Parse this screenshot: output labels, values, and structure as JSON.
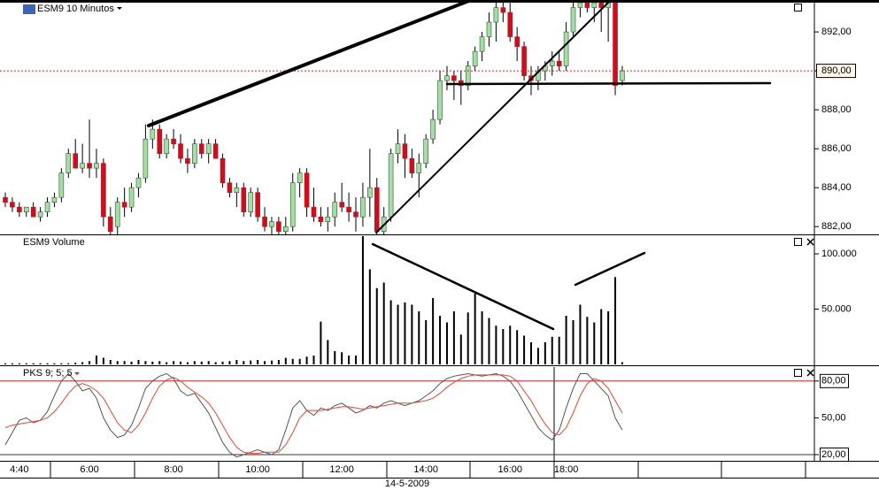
{
  "chart_data": [
    {
      "type": "candlestick",
      "title": "ESM9 10 Minutos",
      "xlabel": "14-5-2009",
      "categories": [
        null,
        null,
        "4:40",
        null,
        null,
        null,
        null,
        null,
        null,
        null,
        null,
        null,
        "6:00",
        null,
        null,
        null,
        null,
        null,
        null,
        null,
        null,
        null,
        null,
        null,
        "8:00",
        null,
        null,
        null,
        null,
        null,
        null,
        null,
        null,
        null,
        null,
        null,
        "10:00",
        null,
        null,
        null,
        null,
        null,
        null,
        null,
        null,
        null,
        null,
        null,
        "12:00",
        null,
        null,
        null,
        null,
        null,
        null,
        null,
        null,
        null,
        null,
        null,
        "14:00",
        null,
        null,
        null,
        null,
        null,
        null,
        null,
        null,
        null,
        null,
        null,
        "16:00",
        null,
        null,
        null,
        null,
        null,
        null,
        null,
        "18:00",
        null,
        null,
        null,
        null,
        null,
        null,
        null,
        null
      ],
      "open": [
        883.5,
        883.25,
        883,
        882.75,
        883,
        882.5,
        882.75,
        883.25,
        883.5,
        884.75,
        885.75,
        885,
        885.25,
        885,
        885.25,
        882.5,
        882,
        883.25,
        883,
        884,
        884.5,
        886.5,
        887,
        885.75,
        886.5,
        886.25,
        885.5,
        885.25,
        886.25,
        885.75,
        886.25,
        885.5,
        884.25,
        883.75,
        884,
        882.75,
        883.75,
        882.5,
        882,
        882.25,
        881.75,
        882,
        884.25,
        884.75,
        883,
        882.5,
        882.25,
        882.5,
        883.25,
        883,
        882.75,
        882.5,
        883.5,
        884,
        881.75,
        882.5,
        885.75,
        886.25,
        885.5,
        884.75,
        885.25,
        886.5,
        887.5,
        889.5,
        889.75,
        889.5,
        889.25,
        890.25,
        891,
        891.75,
        892.5,
        893.25,
        893,
        891.75,
        891.25,
        889.75,
        889.5,
        890,
        890.25,
        890.5,
        890.25,
        892,
        893.25,
        893.5,
        893.25,
        893.5,
        893.25,
        893.5,
        889.5
      ],
      "high": [
        883.75,
        883.5,
        883.25,
        883,
        883.25,
        883,
        883.5,
        883.75,
        885,
        886,
        886.5,
        886.25,
        887.5,
        886,
        885.5,
        883,
        883.5,
        884,
        884.25,
        884.75,
        887.25,
        887.5,
        887.25,
        886.75,
        887,
        886.75,
        886,
        886.5,
        886.5,
        886.5,
        886.5,
        885.75,
        884.5,
        884.25,
        884.25,
        884,
        884,
        883,
        882.5,
        882.5,
        882.5,
        884.75,
        885,
        885,
        884,
        883,
        883,
        883.75,
        884.25,
        883.75,
        883.5,
        884.25,
        886,
        884.5,
        883,
        886,
        887,
        886.75,
        886,
        885.75,
        886.75,
        888,
        890,
        890.25,
        890,
        890,
        890.5,
        891.25,
        892,
        893,
        894,
        894,
        893.5,
        892.25,
        891.5,
        890.25,
        890.25,
        890.5,
        891,
        891,
        892.5,
        893.5,
        894,
        894,
        894,
        894,
        894,
        894,
        890.25
      ],
      "low": [
        883,
        882.75,
        882.5,
        882.5,
        882.5,
        882.25,
        882.5,
        883,
        883.25,
        884.5,
        885,
        884.75,
        884.5,
        884.5,
        882,
        881.6,
        881.6,
        882.5,
        882.75,
        883.5,
        884.25,
        886,
        885.5,
        885.5,
        886,
        885.25,
        884.75,
        885,
        885.5,
        885.25,
        885.5,
        884,
        883.5,
        883,
        882.5,
        882.5,
        882.25,
        881.75,
        881.6,
        881.6,
        881.6,
        881.75,
        883.5,
        882.5,
        882.25,
        882,
        881.75,
        882,
        882.75,
        882.25,
        881.75,
        882,
        882.5,
        881.6,
        881.6,
        882.25,
        885.25,
        884.5,
        884.5,
        883.5,
        885,
        886.25,
        887.25,
        889,
        888.5,
        888.25,
        889,
        890,
        890.5,
        891.25,
        891.5,
        892.5,
        891.5,
        890.5,
        889.5,
        888.75,
        889,
        889.5,
        889.75,
        890,
        890,
        891.75,
        892.75,
        893,
        892.5,
        892,
        891.5,
        888.75,
        889.25
      ],
      "close": [
        883.25,
        883,
        882.75,
        883,
        882.5,
        882.75,
        883.25,
        883.5,
        884.75,
        885.75,
        885,
        885.25,
        885,
        885.25,
        882.5,
        881.75,
        883.25,
        883,
        884,
        884.5,
        886.5,
        887,
        885.75,
        886.5,
        886.25,
        885.5,
        885.25,
        886.25,
        885.75,
        886.25,
        885.5,
        884.25,
        883.75,
        884,
        882.75,
        883.75,
        882.5,
        882,
        882.25,
        881.75,
        882,
        884.25,
        884.75,
        883,
        882.5,
        882.25,
        882.5,
        883.25,
        883,
        882.75,
        882.5,
        883.5,
        884,
        881.75,
        882.5,
        885.75,
        886.25,
        885.5,
        884.75,
        885.25,
        886.5,
        887.5,
        889.5,
        889.75,
        889.5,
        889.25,
        890.25,
        891,
        891.75,
        892.5,
        893.25,
        893,
        891.75,
        891.25,
        889.75,
        889.5,
        890,
        890.25,
        890.5,
        890.25,
        892,
        893.25,
        893.5,
        893.25,
        893.5,
        893.25,
        893.5,
        889.25,
        890
      ],
      "up_color": "#a6dca6",
      "down_color": "#c8101e",
      "ylim": [
        881.6,
        893.64
      ],
      "yticks": [
        {
          "value": 882,
          "label": "882,00"
        },
        {
          "value": 884,
          "label": "884,00"
        },
        {
          "value": 886,
          "label": "886,00"
        },
        {
          "value": 888,
          "label": "888,00"
        },
        {
          "value": 890,
          "label": "890,00"
        },
        {
          "value": 892,
          "label": "892,00"
        }
      ],
      "last_price": {
        "value": 890,
        "label": "890,00",
        "color": "#dd2222"
      }
    },
    {
      "type": "bar",
      "title": "ESM9 Volume",
      "color": "#000000",
      "values": [
        1000,
        1000,
        1000,
        1000,
        1000,
        1000,
        1000,
        1000,
        1000,
        1000,
        1500,
        2000,
        3000,
        8000,
        6000,
        4000,
        3000,
        3000,
        2500,
        4000,
        3000,
        2500,
        3000,
        2000,
        3000,
        2500,
        2000,
        3000,
        2500,
        3000,
        2000,
        2500,
        3000,
        4000,
        3000,
        3500,
        4000,
        3000,
        3500,
        4000,
        6000,
        5000,
        5000,
        7000,
        8000,
        38700,
        22000,
        12000,
        11000,
        8000,
        8000,
        116000,
        86000,
        69000,
        74000,
        58000,
        54000,
        56000,
        54000,
        48000,
        40000,
        60000,
        44000,
        38000,
        48000,
        27000,
        47000,
        64000,
        48000,
        42000,
        35000,
        32000,
        35000,
        31000,
        26000,
        20000,
        15000,
        20000,
        25000,
        25000,
        44000,
        40000,
        54000,
        43000,
        38000,
        50000,
        48000,
        79000,
        2000
      ],
      "ylim": [
        0,
        116000
      ],
      "yticks": [
        {
          "value": 50000,
          "label": "50.000"
        },
        {
          "value": 100000,
          "label": "100.000"
        }
      ]
    },
    {
      "type": "line",
      "title": "PKS 9; 5; 5",
      "title_color": "#cc2222",
      "series": [
        {
          "color": "#555555",
          "values": [
            28,
            38,
            48,
            50,
            46,
            48,
            55,
            68,
            80,
            86,
            80,
            72,
            74,
            66,
            50,
            40,
            34,
            36,
            44,
            58,
            74,
            80,
            84,
            86,
            82,
            72,
            68,
            70,
            62,
            54,
            42,
            30,
            22,
            18,
            20,
            22,
            24,
            22,
            20,
            24,
            40,
            58,
            64,
            56,
            52,
            58,
            56,
            60,
            62,
            58,
            54,
            56,
            60,
            58,
            62,
            64,
            62,
            60,
            62,
            64,
            68,
            72,
            78,
            82,
            84,
            85,
            86,
            85,
            84,
            85,
            86,
            84,
            80,
            72,
            62,
            52,
            42,
            36,
            32,
            40,
            58,
            74,
            86,
            86,
            80,
            74,
            68,
            50,
            40
          ]
        },
        {
          "color": "#ee4433",
          "values": [
            42,
            44,
            45,
            46,
            47,
            48,
            50,
            55,
            62,
            70,
            76,
            78,
            76,
            72,
            66,
            56,
            46,
            40,
            38,
            44,
            54,
            66,
            76,
            81,
            83,
            80,
            75,
            71,
            67,
            62,
            54,
            44,
            34,
            26,
            22,
            21,
            21,
            22,
            22,
            22,
            28,
            38,
            50,
            56,
            56,
            56,
            57,
            58,
            59,
            59,
            58,
            57,
            58,
            59,
            60,
            61,
            62,
            62,
            62,
            63,
            64,
            66,
            70,
            75,
            79,
            82,
            84,
            85,
            85,
            85,
            85,
            85,
            84,
            80,
            72,
            64,
            54,
            45,
            38,
            36,
            42,
            54,
            68,
            78,
            82,
            80,
            74,
            64,
            54
          ]
        }
      ],
      "ylim": [
        15.7,
        91.4
      ],
      "yticks": [
        {
          "value": 20,
          "label": "20,00"
        },
        {
          "value": 50,
          "label": "50,00"
        },
        {
          "value": 80,
          "label": "80,00"
        }
      ],
      "boxed_ticks": [
        0,
        2
      ],
      "hlines": [
        {
          "value": 80,
          "color": "#cc2222"
        },
        {
          "value": 20,
          "color": "#333333"
        }
      ]
    }
  ]
}
